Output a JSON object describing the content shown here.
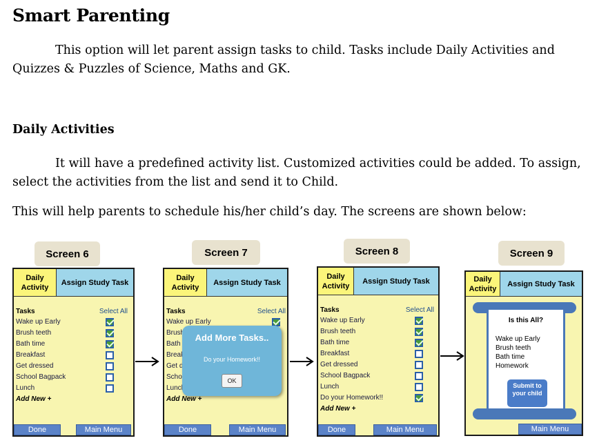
{
  "title": "Smart Parenting",
  "intro": {
    "line1": "This option will let parent assign tasks to child. Tasks include Daily Activities and",
    "line2": "Quizzes & Puzzles of Science, Maths and GK."
  },
  "daily_heading": "Daily Activities",
  "daily_para": {
    "line1": "It will have a predefined activity list. Customized activities could be added. To assign,",
    "line2": "select the activities from the list and send it to Child."
  },
  "schedule_text": "This will help parents to schedule his/her child’s day. The screens are shown below:",
  "screens": [
    {
      "label": "Screen 6",
      "tab_daily": "Daily Activity",
      "tab_study": "Assign Study Task",
      "tasks_header": "Tasks",
      "select_all": "Select All",
      "tasks": [
        {
          "label": "Wake up Early",
          "checked": true
        },
        {
          "label": "Brush teeth",
          "checked": true
        },
        {
          "label": "Bath time",
          "checked": true
        },
        {
          "label": "Breakfast",
          "checked": false
        },
        {
          "label": "Get dressed",
          "checked": false
        },
        {
          "label": "School Bagpack",
          "checked": false
        },
        {
          "label": "Lunch",
          "checked": false
        }
      ],
      "add_new": "Add New +",
      "done": "Done",
      "main_menu": "Main Menu"
    },
    {
      "label": "Screen 7",
      "tab_daily": "Daily Activity",
      "tab_study": "Assign Study Task",
      "tasks_header": "Tasks",
      "select_all": "Select All",
      "tasks": [
        {
          "label": "Wake up Early",
          "checked": true
        },
        {
          "label": "Brush",
          "checked": false
        },
        {
          "label": "Bath",
          "checked": false
        },
        {
          "label": "Break",
          "checked": false
        },
        {
          "label": "Get d",
          "checked": false
        },
        {
          "label": "Scho",
          "checked": false
        },
        {
          "label": "Lunch",
          "checked": false
        }
      ],
      "add_new": "Add New +",
      "done": "Done",
      "main_menu": "Main Menu",
      "popup": {
        "title": "Add More Tasks..",
        "message": "Do your Homework!!",
        "ok": "OK"
      }
    },
    {
      "label": "Screen 8",
      "tab_daily": "Daily Activity",
      "tab_study": "Assign Study Task",
      "tasks_header": "Tasks",
      "select_all": "Select All",
      "tasks": [
        {
          "label": "Wake up Early",
          "checked": true
        },
        {
          "label": "Brush teeth",
          "checked": true
        },
        {
          "label": "Bath time",
          "checked": true
        },
        {
          "label": "Breakfast",
          "checked": false
        },
        {
          "label": "Get dressed",
          "checked": false
        },
        {
          "label": "School Bagpack",
          "checked": false
        },
        {
          "label": "Lunch",
          "checked": false
        },
        {
          "label": "Do your Homework!!",
          "checked": true
        }
      ],
      "add_new": "Add New +",
      "done": "Done",
      "main_menu": "Main Menu"
    },
    {
      "label": "Screen 9",
      "tab_daily": "Daily Activity",
      "tab_study": "Assign Study Task",
      "confirm": {
        "question": "Is this All?",
        "items": [
          "Wake up Early",
          "Brush teeth",
          "Bath time",
          "Homework"
        ],
        "submit": "Submit to your child"
      },
      "main_menu": "Main Menu"
    }
  ]
}
